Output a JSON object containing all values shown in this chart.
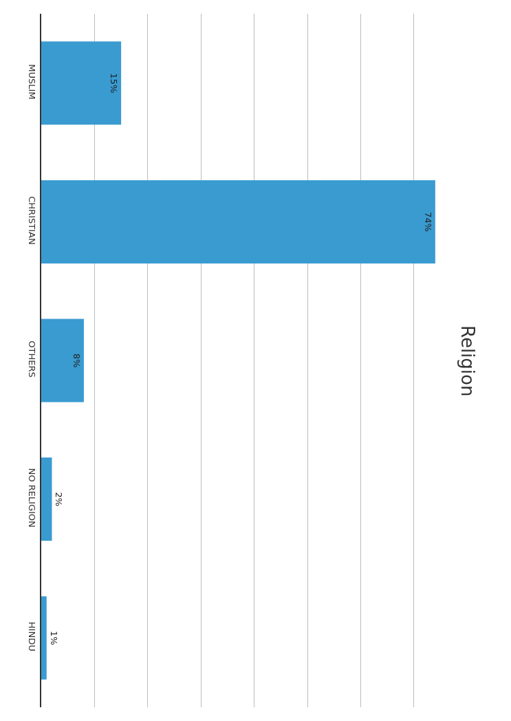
{
  "chart_data": {
    "type": "bar",
    "title": "Religion",
    "orientation": "horizontal",
    "categories": [
      "MUSLIM",
      "CHRISTIAN",
      "OTHERS",
      "NO RELIGION",
      "HINDU"
    ],
    "values": [
      15,
      74,
      8,
      2,
      1
    ],
    "value_labels": [
      "15%",
      "74%",
      "8%",
      "2%",
      "1%"
    ],
    "color": "#3a9bd1",
    "grid": "x",
    "tick_labels": "y",
    "legend": false
  }
}
